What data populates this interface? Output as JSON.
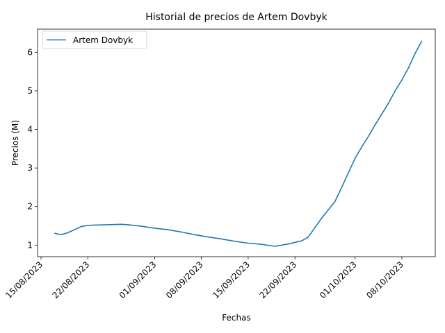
{
  "chart_data": {
    "type": "line",
    "title": "Historial de precios de Artem Dovbyk",
    "xlabel": "Fechas",
    "ylabel": "Precios (M)",
    "x_is_date": true,
    "xlim": [
      "2023-08-15",
      "2023-10-13"
    ],
    "ylim": [
      0.7,
      6.6
    ],
    "x_ticks": [
      "2023-08-15",
      "2023-08-22",
      "2023-09-01",
      "2023-09-08",
      "2023-09-15",
      "2023-09-22",
      "2023-10-01",
      "2023-10-08"
    ],
    "x_tick_labels": [
      "15/08/2023",
      "22/08/2023",
      "01/09/2023",
      "08/09/2023",
      "15/09/2023",
      "22/09/2023",
      "01/10/2023",
      "08/10/2023"
    ],
    "y_ticks": [
      1,
      2,
      3,
      4,
      5,
      6
    ],
    "y_tick_labels": [
      "1",
      "2",
      "3",
      "4",
      "5",
      "6"
    ],
    "legend": {
      "position": "top-left"
    },
    "series": [
      {
        "name": "Artem Dovbyk",
        "color": "#1f77b4",
        "points": [
          {
            "x": "2023-08-17",
            "y": 1.31
          },
          {
            "x": "2023-08-18",
            "y": 1.27
          },
          {
            "x": "2023-08-19",
            "y": 1.32
          },
          {
            "x": "2023-08-21",
            "y": 1.48
          },
          {
            "x": "2023-08-22",
            "y": 1.51
          },
          {
            "x": "2023-08-23",
            "y": 1.52
          },
          {
            "x": "2023-08-25",
            "y": 1.53
          },
          {
            "x": "2023-08-27",
            "y": 1.54
          },
          {
            "x": "2023-08-28",
            "y": 1.53
          },
          {
            "x": "2023-08-30",
            "y": 1.49
          },
          {
            "x": "2023-09-01",
            "y": 1.44
          },
          {
            "x": "2023-09-03",
            "y": 1.4
          },
          {
            "x": "2023-09-05",
            "y": 1.34
          },
          {
            "x": "2023-09-07",
            "y": 1.27
          },
          {
            "x": "2023-09-09",
            "y": 1.21
          },
          {
            "x": "2023-09-11",
            "y": 1.16
          },
          {
            "x": "2023-09-13",
            "y": 1.1
          },
          {
            "x": "2023-09-15",
            "y": 1.05
          },
          {
            "x": "2023-09-17",
            "y": 1.02
          },
          {
            "x": "2023-09-19",
            "y": 0.97
          },
          {
            "x": "2023-09-21",
            "y": 1.03
          },
          {
            "x": "2023-09-23",
            "y": 1.11
          },
          {
            "x": "2023-09-24",
            "y": 1.21
          },
          {
            "x": "2023-09-26",
            "y": 1.7
          },
          {
            "x": "2023-09-28",
            "y": 2.13
          },
          {
            "x": "2023-09-29",
            "y": 2.5
          },
          {
            "x": "2023-10-01",
            "y": 3.25
          },
          {
            "x": "2023-10-02",
            "y": 3.55
          },
          {
            "x": "2023-10-03",
            "y": 3.82
          },
          {
            "x": "2023-10-04",
            "y": 4.12
          },
          {
            "x": "2023-10-05",
            "y": 4.4
          },
          {
            "x": "2023-10-06",
            "y": 4.68
          },
          {
            "x": "2023-10-07",
            "y": 5.0
          },
          {
            "x": "2023-10-08",
            "y": 5.28
          },
          {
            "x": "2023-10-09",
            "y": 5.6
          },
          {
            "x": "2023-10-10",
            "y": 5.98
          },
          {
            "x": "2023-10-11",
            "y": 6.3
          }
        ]
      }
    ]
  }
}
